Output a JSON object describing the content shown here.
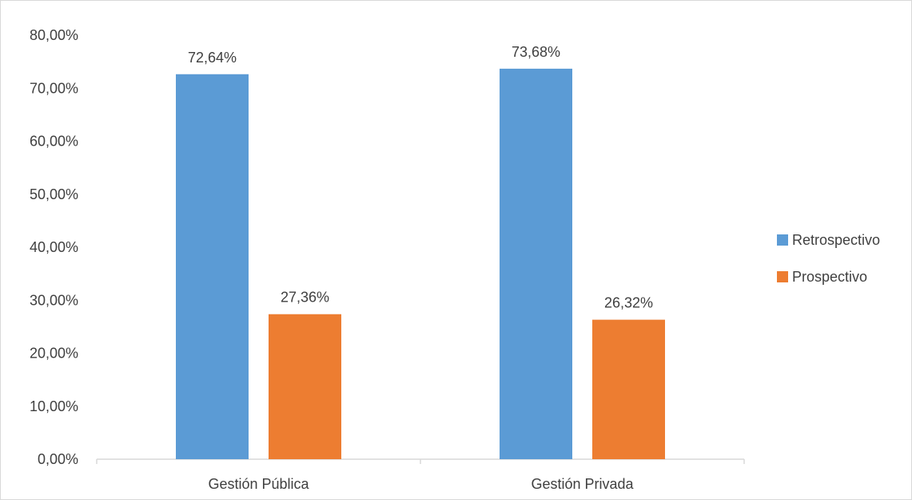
{
  "chart_data": {
    "type": "bar",
    "title": "",
    "xlabel": "",
    "ylabel": "",
    "categories": [
      "Gestión Pública",
      "Gestión Privada"
    ],
    "series": [
      {
        "name": "Retrospectivo",
        "color": "#5b9bd5",
        "values": [
          72.64,
          73.68
        ],
        "labels": [
          "72,64%",
          "73,68%"
        ]
      },
      {
        "name": "Prospectivo",
        "color": "#ed7d31",
        "values": [
          27.36,
          26.32
        ],
        "labels": [
          "27,36%",
          "26,32%"
        ]
      }
    ],
    "ylim": [
      0,
      80
    ],
    "yticks": [
      0,
      10,
      20,
      30,
      40,
      50,
      60,
      70,
      80
    ],
    "ytick_labels": [
      "0,00%",
      "10,00%",
      "20,00%",
      "30,00%",
      "40,00%",
      "50,00%",
      "60,00%",
      "70,00%",
      "80,00%"
    ],
    "grid": false,
    "legend_position": "right"
  }
}
